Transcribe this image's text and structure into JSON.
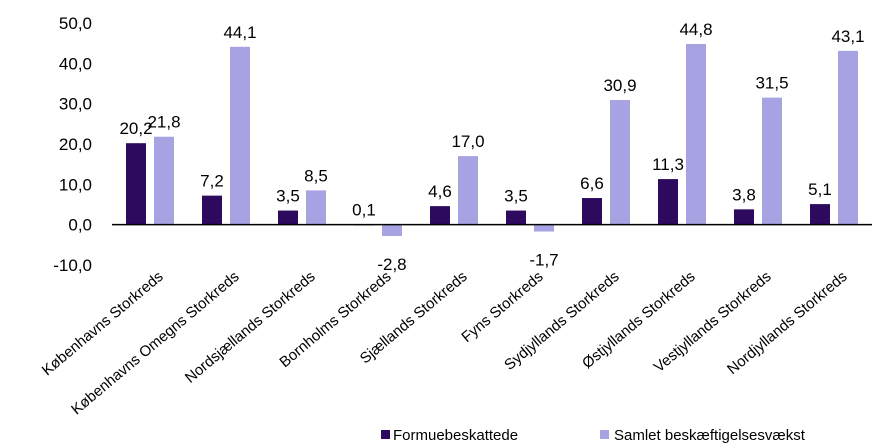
{
  "chart_data": {
    "type": "bar",
    "categories": [
      "Københavns Storkreds",
      "Københavns Omegns Storkreds",
      "Nordsjællands Storkreds",
      "Bornholms Storkreds",
      "Sjællands Storkreds",
      "Fyns Storkreds",
      "Sydjyllands Storkreds",
      "Østjyllands Storkreds",
      "Vestjyllands Storkreds",
      "Nordjyllands Storkreds"
    ],
    "series": [
      {
        "name": "Formuebeskattede",
        "color": "#2e0a5e",
        "values": [
          20.2,
          7.2,
          3.5,
          0.1,
          4.6,
          3.5,
          6.6,
          11.3,
          3.8,
          5.1
        ],
        "labels": [
          "20,2",
          "7,2",
          "3,5",
          "0,1",
          "4,6",
          "3,5",
          "6,6",
          "11,3",
          "3,8",
          "5,1"
        ]
      },
      {
        "name": "Samlet beskæftigelsesvækst",
        "color": "#a7a3e3",
        "values": [
          21.8,
          44.1,
          8.5,
          -2.8,
          17.0,
          -1.7,
          30.9,
          44.8,
          31.5,
          43.1
        ],
        "labels": [
          "21,8",
          "44,1",
          "8,5",
          "-2,8",
          "17,0",
          "-1,7",
          "30,9",
          "44,8",
          "31,5",
          "43,1"
        ]
      }
    ],
    "ylim": [
      -10,
      50
    ],
    "yticks": [
      -10,
      0,
      10,
      20,
      30,
      40,
      50
    ],
    "ytick_labels": [
      "-10,0",
      "0,0",
      "10,0",
      "20,0",
      "30,0",
      "40,0",
      "50,0"
    ],
    "grid": false,
    "legend_position": "bottom-right"
  }
}
